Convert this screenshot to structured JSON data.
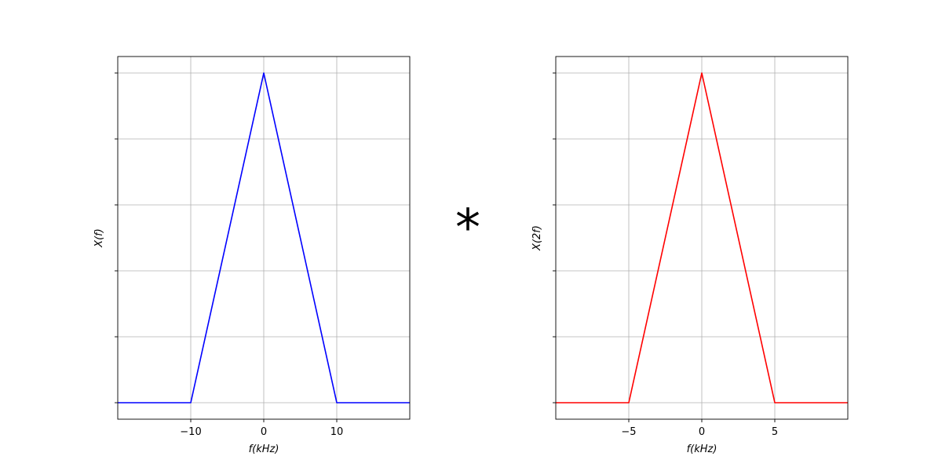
{
  "operator_symbol": "*",
  "chart_data": [
    {
      "type": "line",
      "xlabel": "f(kHz)",
      "ylabel": "X(f)",
      "xlim": [
        -20,
        20
      ],
      "ylim": [
        -0.05,
        1.05
      ],
      "grid": true,
      "xticks": [
        {
          "value": -10,
          "label": "−10"
        },
        {
          "value": 0,
          "label": "0"
        },
        {
          "value": 10,
          "label": "10"
        }
      ],
      "yticks": [
        0,
        0.2,
        0.4,
        0.6,
        0.8,
        1.0
      ],
      "ytick_labels_shown": false,
      "series": [
        {
          "color": "#0000ff",
          "x": [
            -20,
            -10,
            0,
            10,
            20
          ],
          "y": [
            0,
            0,
            1,
            0,
            0
          ]
        }
      ]
    },
    {
      "type": "line",
      "xlabel": "f(kHz)",
      "ylabel": "X(2f)",
      "xlim": [
        -10,
        10
      ],
      "ylim": [
        -0.05,
        1.05
      ],
      "grid": true,
      "xticks": [
        {
          "value": -5,
          "label": "−5"
        },
        {
          "value": 0,
          "label": "0"
        },
        {
          "value": 5,
          "label": "5"
        }
      ],
      "yticks": [
        0,
        0.2,
        0.4,
        0.6,
        0.8,
        1.0
      ],
      "ytick_labels_shown": false,
      "series": [
        {
          "color": "#ff0000",
          "x": [
            -10,
            -5,
            0,
            5,
            10
          ],
          "y": [
            0,
            0,
            1,
            0,
            0
          ]
        }
      ]
    }
  ]
}
